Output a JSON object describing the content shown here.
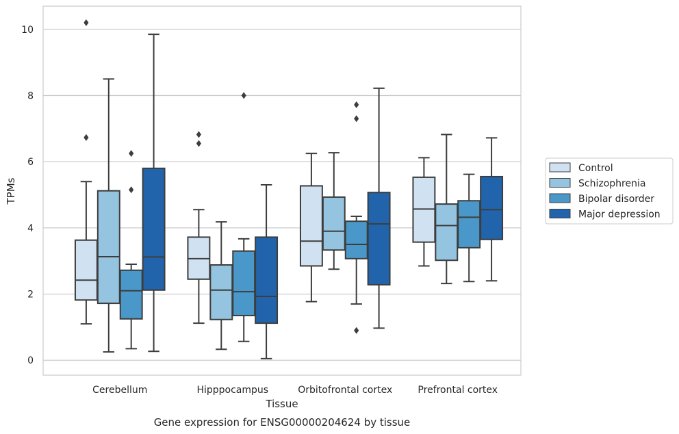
{
  "caption": "Gene expression for ENSG00000204624 by tissue",
  "chart_data": {
    "type": "box",
    "xlabel": "Tissue",
    "ylabel": "TPMs",
    "ylim": [
      -0.45,
      10.7
    ],
    "yticks": [
      0,
      2,
      4,
      6,
      8,
      10
    ],
    "grid": "horizontal",
    "legend_position": "right",
    "categories": [
      "Cerebellum",
      "Hipppocampus",
      "Orbitofrontal cortex",
      "Prefrontal cortex"
    ],
    "series": [
      {
        "name": "Control",
        "color": "#d0e1f2",
        "boxes": [
          {
            "min": 1.1,
            "q1": 1.82,
            "median": 2.42,
            "q3": 3.63,
            "max": 5.4,
            "outliers": [
              6.73,
              10.2
            ]
          },
          {
            "min": 1.12,
            "q1": 2.45,
            "median": 3.07,
            "q3": 3.72,
            "max": 4.55,
            "outliers": [
              6.55,
              6.82
            ]
          },
          {
            "min": 1.77,
            "q1": 2.85,
            "median": 3.6,
            "q3": 5.27,
            "max": 6.25,
            "outliers": []
          },
          {
            "min": 2.85,
            "q1": 3.57,
            "median": 4.57,
            "q3": 5.53,
            "max": 6.12,
            "outliers": []
          }
        ]
      },
      {
        "name": "Schizophrenia",
        "color": "#94c4df",
        "boxes": [
          {
            "min": 0.25,
            "q1": 1.72,
            "median": 3.13,
            "q3": 5.12,
            "max": 8.5,
            "outliers": []
          },
          {
            "min": 0.33,
            "q1": 1.23,
            "median": 2.12,
            "q3": 2.88,
            "max": 4.18,
            "outliers": []
          },
          {
            "min": 2.75,
            "q1": 3.33,
            "median": 3.9,
            "q3": 4.93,
            "max": 6.27,
            "outliers": []
          },
          {
            "min": 2.32,
            "q1": 3.02,
            "median": 4.07,
            "q3": 4.72,
            "max": 6.82,
            "outliers": []
          }
        ]
      },
      {
        "name": "Bipolar disorder",
        "color": "#4a98c9",
        "boxes": [
          {
            "min": 0.35,
            "q1": 1.25,
            "median": 2.1,
            "q3": 2.72,
            "max": 2.9,
            "outliers": [
              5.15,
              6.25
            ]
          },
          {
            "min": 0.57,
            "q1": 1.35,
            "median": 2.07,
            "q3": 3.3,
            "max": 3.67,
            "outliers": [
              8.0
            ]
          },
          {
            "min": 1.7,
            "q1": 3.07,
            "median": 3.5,
            "q3": 4.2,
            "max": 4.35,
            "outliers": [
              0.9,
              7.3,
              7.72
            ]
          },
          {
            "min": 2.38,
            "q1": 3.4,
            "median": 4.32,
            "q3": 4.82,
            "max": 5.62,
            "outliers": []
          }
        ]
      },
      {
        "name": "Major depression",
        "color": "#2164ab",
        "boxes": [
          {
            "min": 0.27,
            "q1": 2.12,
            "median": 3.12,
            "q3": 5.8,
            "max": 9.85,
            "outliers": []
          },
          {
            "min": 0.05,
            "q1": 1.12,
            "median": 1.93,
            "q3": 3.72,
            "max": 5.3,
            "outliers": []
          },
          {
            "min": 0.97,
            "q1": 2.28,
            "median": 4.12,
            "q3": 5.07,
            "max": 8.22,
            "outliers": []
          },
          {
            "min": 2.4,
            "q1": 3.65,
            "median": 4.55,
            "q3": 5.55,
            "max": 6.72,
            "outliers": []
          }
        ]
      }
    ]
  }
}
